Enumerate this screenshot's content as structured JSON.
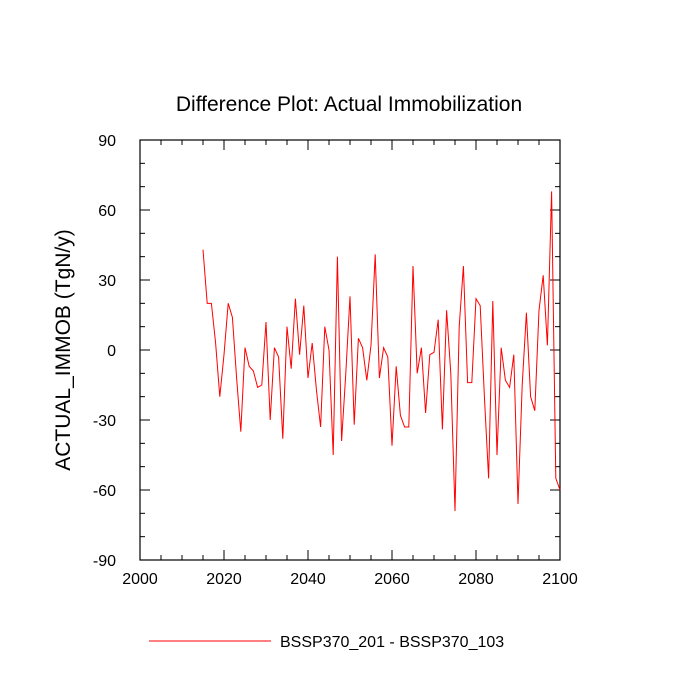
{
  "chart_data": {
    "type": "line",
    "title": "Difference Plot: Actual Immobilization",
    "xlabel": "",
    "ylabel": "ACTUAL_IMMOB  (TgN/y)",
    "xlim": [
      2000,
      2100
    ],
    "ylim": [
      -90,
      90
    ],
    "x_ticks": [
      2000,
      2020,
      2040,
      2060,
      2080,
      2100
    ],
    "y_ticks": [
      -90,
      -60,
      -30,
      0,
      30,
      60,
      90
    ],
    "x_tick_labels": [
      "2000",
      "2020",
      "2040",
      "2060",
      "2080",
      "2100"
    ],
    "y_tick_labels": [
      "-90",
      "-60",
      "-30",
      "0",
      "30",
      "60",
      "90"
    ],
    "grid": false,
    "legend_position": "bottom",
    "series": [
      {
        "name": "BSSP370_201 - BSSP370_103",
        "color": "#ff0000",
        "x": [
          2015,
          2016,
          2017,
          2018,
          2019,
          2020,
          2021,
          2022,
          2023,
          2024,
          2025,
          2026,
          2027,
          2028,
          2029,
          2030,
          2031,
          2032,
          2033,
          2034,
          2035,
          2036,
          2037,
          2038,
          2039,
          2040,
          2041,
          2042,
          2043,
          2044,
          2045,
          2046,
          2047,
          2048,
          2049,
          2050,
          2051,
          2052,
          2053,
          2054,
          2055,
          2056,
          2057,
          2058,
          2059,
          2060,
          2061,
          2062,
          2063,
          2064,
          2065,
          2066,
          2067,
          2068,
          2069,
          2070,
          2071,
          2072,
          2073,
          2074,
          2075,
          2076,
          2077,
          2078,
          2079,
          2080,
          2081,
          2082,
          2083,
          2084,
          2085,
          2086,
          2087,
          2088,
          2089,
          2090,
          2091,
          2092,
          2093,
          2094,
          2095,
          2096,
          2097,
          2098,
          2099,
          2100
        ],
        "values": [
          43,
          20,
          20,
          3,
          -20,
          -2,
          20,
          14,
          -12,
          -35,
          1,
          -7,
          -9,
          -16,
          -15,
          12,
          -30,
          1,
          -3,
          -38,
          10,
          -8,
          22,
          -2,
          19,
          -12,
          3,
          -17,
          -33,
          10,
          0,
          -45,
          40,
          -39,
          -10,
          23,
          -32,
          5,
          1,
          -13,
          2,
          41,
          -12,
          1,
          -3,
          -41,
          -7,
          -28,
          -33,
          -33,
          36,
          -10,
          1,
          -27,
          -2,
          -1,
          13,
          -34,
          17,
          -10,
          -69,
          10,
          36,
          -14,
          -14,
          22,
          19,
          -20,
          -55,
          21,
          -45,
          1,
          -13,
          -16,
          -2,
          -66,
          -15,
          16,
          -20,
          -26,
          17,
          32,
          2,
          68,
          -55,
          -60
        ]
      }
    ]
  }
}
